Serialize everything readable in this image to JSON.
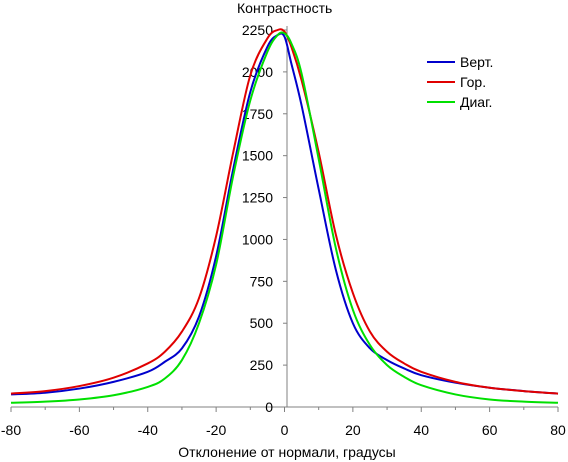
{
  "chart_data": {
    "type": "line",
    "title": "",
    "xlabel": "Отклонение от нормали, градусы",
    "ylabel": "Контрастность",
    "xlim": [
      -80,
      80
    ],
    "ylim": [
      0,
      2250
    ],
    "xticks": [
      "-80",
      "-60",
      "-40",
      "-20",
      "0",
      "20",
      "40",
      "60",
      "80"
    ],
    "yticks": [
      "0",
      "250",
      "500",
      "750",
      "1000",
      "1250",
      "1500",
      "1750",
      "2000",
      "2250"
    ],
    "grid": false,
    "legend_position": "top-right",
    "series": [
      {
        "name": "Верт.",
        "color": "#0000cc",
        "x": [
          -80,
          -70,
          -60,
          -50,
          -40,
          -35,
          -30,
          -25,
          -20,
          -15,
          -10,
          -5,
          -2,
          0,
          2,
          5,
          10,
          15,
          20,
          25,
          30,
          35,
          40,
          50,
          60,
          70,
          80
        ],
        "y": [
          75,
          85,
          110,
          150,
          210,
          270,
          350,
          540,
          900,
          1420,
          1880,
          2150,
          2220,
          2210,
          2050,
          1800,
          1300,
          820,
          500,
          350,
          280,
          230,
          190,
          145,
          115,
          95,
          80
        ]
      },
      {
        "name": "Гор.",
        "color": "#e00000",
        "x": [
          -80,
          -70,
          -60,
          -50,
          -40,
          -35,
          -30,
          -25,
          -20,
          -15,
          -10,
          -5,
          -2,
          0,
          2,
          5,
          10,
          15,
          20,
          25,
          30,
          35,
          40,
          50,
          60,
          70,
          80
        ],
        "y": [
          80,
          95,
          125,
          175,
          260,
          330,
          450,
          650,
          1020,
          1520,
          1980,
          2200,
          2250,
          2240,
          2150,
          1950,
          1520,
          1030,
          680,
          450,
          330,
          260,
          210,
          150,
          115,
          95,
          80
        ]
      },
      {
        "name": "Диаг.",
        "color": "#00e000",
        "x": [
          -80,
          -70,
          -60,
          -50,
          -40,
          -35,
          -30,
          -25,
          -20,
          -15,
          -10,
          -5,
          -2,
          0,
          2,
          5,
          10,
          15,
          20,
          25,
          30,
          35,
          40,
          50,
          60,
          70,
          80
        ],
        "y": [
          25,
          32,
          45,
          70,
          120,
          170,
          280,
          500,
          850,
          1380,
          1830,
          2120,
          2220,
          2230,
          2170,
          1990,
          1480,
          950,
          580,
          370,
          250,
          180,
          130,
          75,
          45,
          32,
          25
        ]
      }
    ]
  }
}
